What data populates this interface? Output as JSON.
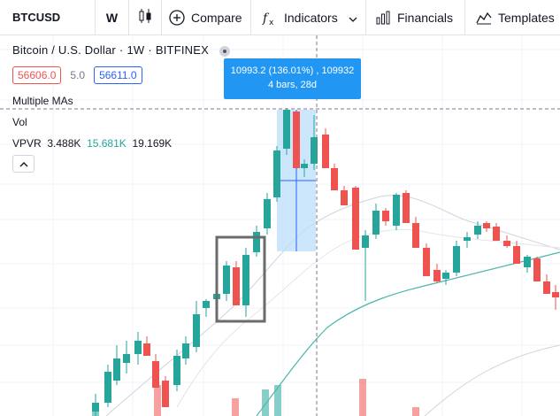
{
  "toolbar": {
    "symbol": "BTCUSD",
    "interval": "W",
    "compare_label": "Compare",
    "indicators_label": "Indicators",
    "financials_label": "Financials",
    "templates_label": "Templates"
  },
  "legend": {
    "name": "Bitcoin / U.S. Dollar",
    "timeframe": "1W",
    "exchange": "BITFINEX",
    "bid": "56606.0",
    "spread": "5.0",
    "ask": "56611.0",
    "indicator_mas": "Multiple MAs",
    "indicator_vol": "Vol",
    "vpvr_label": "VPVR",
    "vpvr_v1": "3.488K",
    "vpvr_v2": "15.681K",
    "vpvr_v3": "19.169K"
  },
  "measure_tooltip": {
    "line1": "10993.2 (136.01%) , 109932",
    "line2": "4 bars, 28d"
  },
  "colors": {
    "up": "#26a69a",
    "down": "#ef5350",
    "measure_fill": "#bbdefb",
    "tooltip_bg": "#2196f3"
  },
  "icons": {
    "bar_style": "candles-icon",
    "compare": "plus-circle-icon",
    "indicators": "fx-icon",
    "more": "chevron-down-icon",
    "financials": "bar-chart-icon",
    "templates": "templates-icon"
  }
}
